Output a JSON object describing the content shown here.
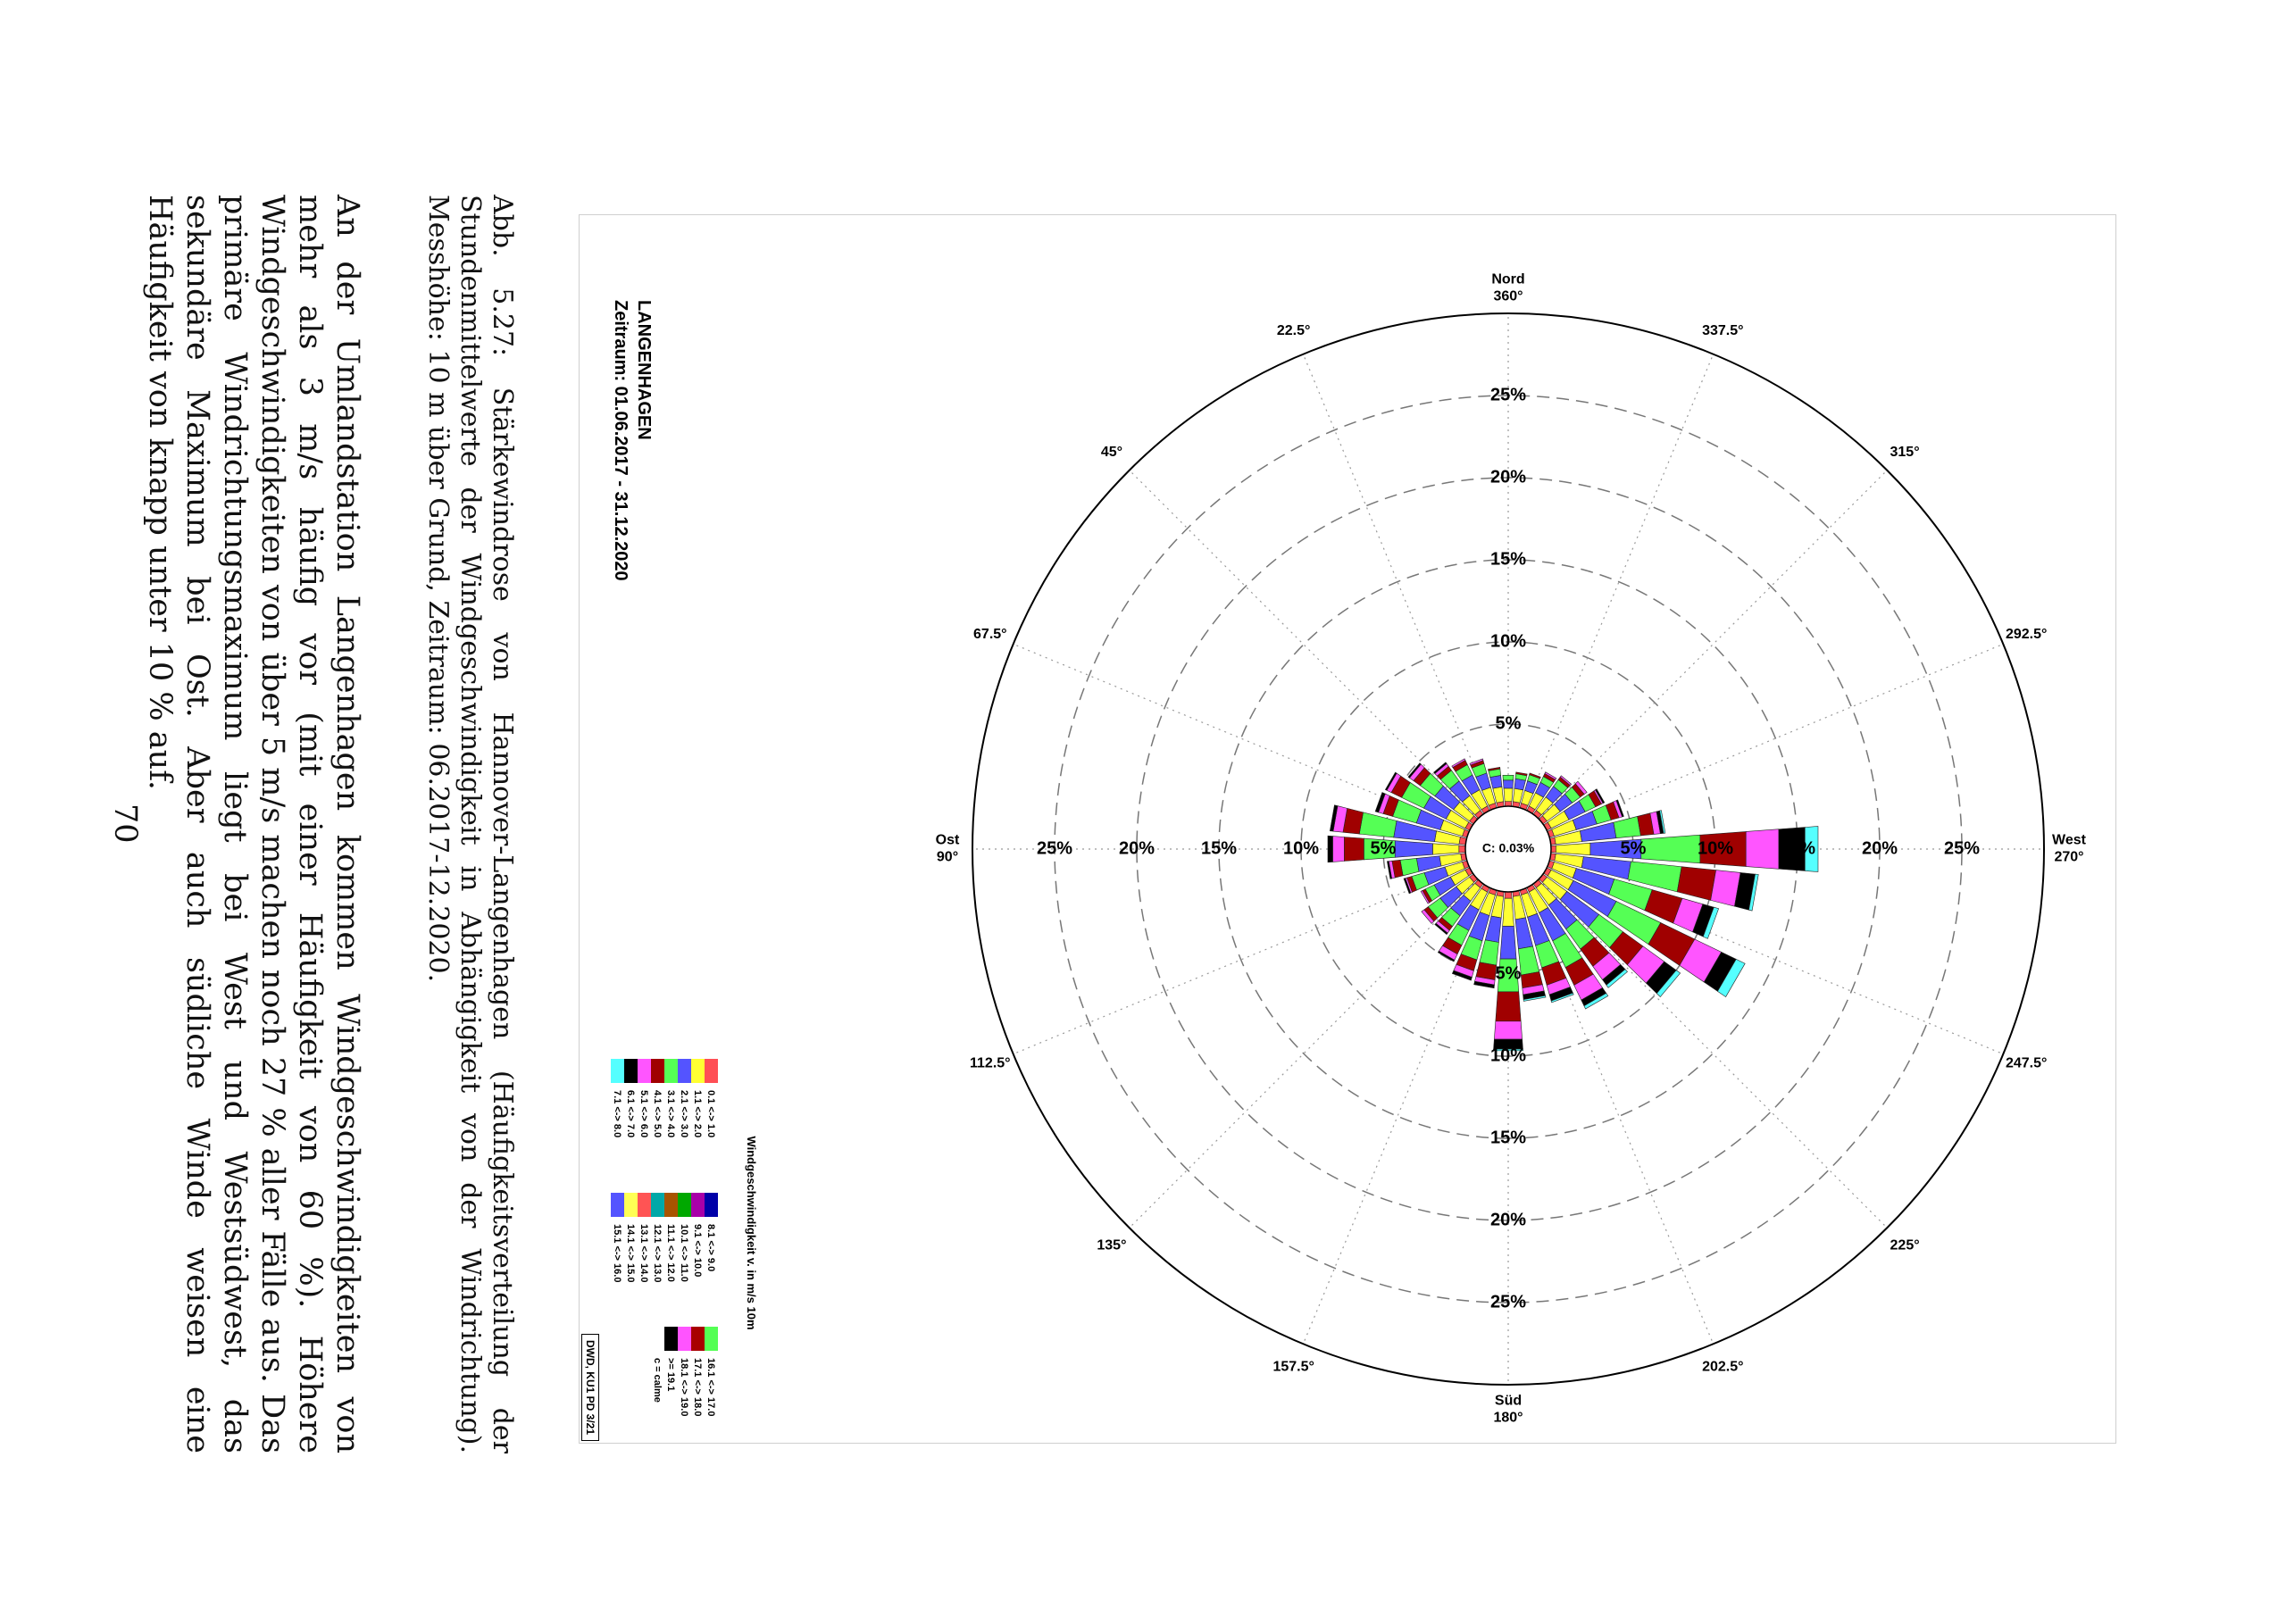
{
  "figure": {
    "station": "LANGENHAGEN",
    "period": "Zeitraum: 01.06.2017 - 31.12.2020",
    "calm_label": "C: 0.03%",
    "stamp": "DWD, KU1 PD 3/21",
    "legend_title": "Windgeschwindigkeit v. in m/s 10m",
    "legend": [
      {
        "label": "0.1 <-> 1.0",
        "color": "#ff4f55"
      },
      {
        "label": "1.1 <-> 2.0",
        "color": "#ffff33"
      },
      {
        "label": "2.1 <-> 3.0",
        "color": "#5454ff"
      },
      {
        "label": "3.1 <-> 4.0",
        "color": "#55ff55"
      },
      {
        "label": "4.1 <-> 5.0",
        "color": "#a00000"
      },
      {
        "label": "5.1 <-> 6.0",
        "color": "#ff55ff"
      },
      {
        "label": "6.1 <-> 7.0",
        "color": "#000000"
      },
      {
        "label": "7.1 <-> 8.0",
        "color": "#55ffff"
      },
      {
        "label": "8.1 <-> 9.0",
        "color": "#0000a8"
      },
      {
        "label": "9.1 <-> 10.0",
        "color": "#a800a8"
      },
      {
        "label": "10.1 <-> 11.0",
        "color": "#00a800"
      },
      {
        "label": "11.1 <-> 12.0",
        "color": "#a85400"
      },
      {
        "label": "12.1 <-> 13.0",
        "color": "#00a8a8"
      },
      {
        "label": "13.1 <-> 14.0",
        "color": "#ff5454"
      },
      {
        "label": "14.1 <-> 15.0",
        "color": "#ffff54"
      },
      {
        "label": "15.1 <-> 16.0",
        "color": "#5454ff"
      },
      {
        "label": "16.1 <-> 17.0",
        "color": "#54ff54"
      },
      {
        "label": "17.1 <-> 18.0",
        "color": "#a80000"
      },
      {
        "label": "18.1 <-> 19.0",
        "color": "#ff54ff"
      },
      {
        "label": ">= 19.1",
        "color": "#000000"
      },
      {
        "label": "c = calme",
        "color": ""
      }
    ]
  },
  "chart_data": {
    "type": "wind-rose",
    "title": "LANGENHAGEN",
    "subtitle": "Zeitraum: 01.06.2017 - 31.12.2020",
    "radial_ticks": [
      "5%",
      "10%",
      "15%",
      "20%",
      "25%"
    ],
    "radial_max": 30,
    "calm_percent": 0.03,
    "direction_labels": [
      {
        "deg": 0,
        "name": "Nord",
        "label": "360°"
      },
      {
        "deg": 22.5,
        "name": "",
        "label": "22.5°"
      },
      {
        "deg": 45,
        "name": "",
        "label": "45°"
      },
      {
        "deg": 67.5,
        "name": "",
        "label": "67.5°"
      },
      {
        "deg": 90,
        "name": "Ost",
        "label": "90°"
      },
      {
        "deg": 112.5,
        "name": "",
        "label": "112.5°"
      },
      {
        "deg": 135,
        "name": "",
        "label": "135°"
      },
      {
        "deg": 157.5,
        "name": "",
        "label": "157.5°"
      },
      {
        "deg": 180,
        "name": "Süd",
        "label": "180°"
      },
      {
        "deg": 202.5,
        "name": "",
        "label": "202.5°"
      },
      {
        "deg": 225,
        "name": "",
        "label": "225°"
      },
      {
        "deg": 247.5,
        "name": "",
        "label": "247.5°"
      },
      {
        "deg": 270,
        "name": "West",
        "label": "270°"
      },
      {
        "deg": 292.5,
        "name": "",
        "label": "292.5°"
      },
      {
        "deg": 315,
        "name": "",
        "label": "315°"
      },
      {
        "deg": 337.5,
        "name": "",
        "label": "337.5°"
      }
    ],
    "bin_colors": [
      "#ff4f55",
      "#ffff33",
      "#5454ff",
      "#55ff55",
      "#a00000",
      "#ff55ff",
      "#000000",
      "#55ffff"
    ],
    "sectors": [
      {
        "deg": 0,
        "values": [
          0.3,
          0.8,
          0.5,
          0.3,
          0.0,
          0.0,
          0.0,
          0.0
        ]
      },
      {
        "deg": 10,
        "values": [
          0.3,
          0.9,
          0.7,
          0.4,
          0.1,
          0.0,
          0.0,
          0.0
        ]
      },
      {
        "deg": 20,
        "values": [
          0.3,
          1.0,
          0.9,
          0.6,
          0.2,
          0.1,
          0.0,
          0.0
        ]
      },
      {
        "deg": 30,
        "values": [
          0.3,
          1.1,
          1.0,
          0.7,
          0.3,
          0.1,
          0.0,
          0.0
        ]
      },
      {
        "deg": 40,
        "values": [
          0.3,
          1.1,
          1.1,
          0.8,
          0.3,
          0.2,
          0.1,
          0.0
        ]
      },
      {
        "deg": 50,
        "values": [
          0.3,
          1.2,
          1.4,
          1.1,
          0.5,
          0.3,
          0.1,
          0.0
        ]
      },
      {
        "deg": 60,
        "values": [
          0.3,
          1.3,
          1.5,
          1.5,
          0.7,
          0.3,
          0.1,
          0.0
        ]
      },
      {
        "deg": 70,
        "values": [
          0.3,
          1.4,
          1.5,
          1.5,
          0.6,
          0.3,
          0.2,
          0.0
        ]
      },
      {
        "deg": 80,
        "values": [
          0.4,
          1.5,
          2.5,
          2.1,
          1.0,
          0.6,
          0.2,
          0.0
        ]
      },
      {
        "deg": 90,
        "values": [
          0.4,
          1.6,
          2.3,
          1.9,
          1.2,
          0.7,
          0.3,
          0.0
        ]
      },
      {
        "deg": 100,
        "values": [
          0.3,
          1.3,
          1.4,
          1.0,
          0.5,
          0.2,
          0.1,
          0.0
        ]
      },
      {
        "deg": 110,
        "values": [
          0.3,
          1.1,
          1.3,
          0.8,
          0.3,
          0.1,
          0.1,
          0.0
        ]
      },
      {
        "deg": 120,
        "values": [
          0.3,
          1.0,
          1.1,
          0.6,
          0.2,
          0.1,
          0.0,
          0.0
        ]
      },
      {
        "deg": 130,
        "values": [
          0.3,
          1.0,
          1.2,
          0.9,
          0.3,
          0.2,
          0.0,
          0.0
        ]
      },
      {
        "deg": 140,
        "values": [
          0.3,
          1.0,
          1.1,
          0.8,
          0.3,
          0.2,
          0.1,
          0.0
        ]
      },
      {
        "deg": 150,
        "values": [
          0.3,
          1.2,
          1.4,
          1.0,
          0.6,
          0.4,
          0.1,
          0.0
        ]
      },
      {
        "deg": 160,
        "values": [
          0.3,
          1.3,
          1.6,
          1.2,
          0.7,
          0.4,
          0.2,
          0.0
        ]
      },
      {
        "deg": 170,
        "values": [
          0.3,
          1.3,
          1.5,
          1.4,
          0.9,
          0.3,
          0.2,
          0.0
        ]
      },
      {
        "deg": 180,
        "values": [
          0.4,
          1.7,
          2.0,
          2.0,
          1.8,
          1.1,
          0.6,
          0.1
        ]
      },
      {
        "deg": 190,
        "values": [
          0.3,
          1.4,
          1.8,
          1.6,
          0.8,
          0.4,
          0.3,
          0.1
        ]
      },
      {
        "deg": 200,
        "values": [
          0.3,
          1.4,
          1.8,
          1.4,
          1.1,
          0.6,
          0.4,
          0.1
        ]
      },
      {
        "deg": 210,
        "values": [
          0.3,
          1.4,
          1.9,
          1.8,
          1.2,
          1.0,
          0.4,
          0.2
        ]
      },
      {
        "deg": 220,
        "values": [
          0.3,
          1.3,
          1.8,
          1.5,
          1.3,
          1.0,
          0.4,
          0.2
        ]
      },
      {
        "deg": 230,
        "values": [
          0.3,
          1.5,
          2.4,
          1.8,
          1.5,
          1.6,
          0.9,
          0.3
        ]
      },
      {
        "deg": 240,
        "values": [
          0.3,
          1.5,
          2.9,
          3.0,
          2.3,
          1.8,
          1.0,
          0.6
        ]
      },
      {
        "deg": 250,
        "values": [
          0.3,
          1.4,
          2.4,
          2.4,
          1.9,
          1.3,
          0.7,
          0.3
        ]
      },
      {
        "deg": 260,
        "values": [
          0.3,
          1.7,
          2.9,
          3.1,
          2.1,
          1.5,
          0.9,
          0.2
        ]
      },
      {
        "deg": 270,
        "values": [
          0.3,
          2.1,
          3.1,
          3.6,
          2.8,
          2.0,
          1.6,
          0.8
        ]
      },
      {
        "deg": 280,
        "values": [
          0.3,
          1.6,
          2.1,
          1.5,
          0.8,
          0.4,
          0.2,
          0.1
        ]
      },
      {
        "deg": 290,
        "values": [
          0.3,
          1.4,
          1.3,
          0.9,
          0.5,
          0.2,
          0.1,
          0.0
        ]
      },
      {
        "deg": 300,
        "values": [
          0.3,
          1.2,
          1.1,
          0.7,
          0.4,
          0.1,
          0.1,
          0.0
        ]
      },
      {
        "deg": 310,
        "values": [
          0.3,
          1.0,
          0.9,
          0.6,
          0.3,
          0.2,
          0.0,
          0.0
        ]
      },
      {
        "deg": 320,
        "values": [
          0.3,
          1.0,
          0.8,
          0.5,
          0.2,
          0.1,
          0.0,
          0.0
        ]
      },
      {
        "deg": 330,
        "values": [
          0.3,
          0.9,
          0.7,
          0.4,
          0.2,
          0.1,
          0.0,
          0.0
        ]
      },
      {
        "deg": 340,
        "values": [
          0.3,
          0.8,
          0.6,
          0.4,
          0.1,
          0.0,
          0.0,
          0.0
        ]
      },
      {
        "deg": 350,
        "values": [
          0.3,
          0.8,
          0.6,
          0.3,
          0.1,
          0.0,
          0.0,
          0.0
        ]
      }
    ]
  },
  "caption": "Abb. 5.27: Stärkewindrose von Hannover-Langenhagen (Häufigkeitsverteilung der Stundenmittelwerte der Windgeschwindigkeit in Abhängigkeit von der Windrichtung). Messhöhe: 10 m über Grund, Zeitraum: 06.2017-12.2020.",
  "body": "An der Umlandstation Langenhagen kommen Windgeschwindigkeiten von mehr als 3 m/s häufig vor (mit einer Häufigkeit von 60 %). Höhere Windgeschwindigkeiten von über 5 m/s machen noch 27 % aller Fälle aus. Das primäre Windrichtungsmaximum liegt bei West und Westsüdwest, das sekundäre Maximum bei Ost. Aber auch südliche Winde weisen eine Häufigkeit von knapp unter 10 % auf.",
  "page_number": "70"
}
